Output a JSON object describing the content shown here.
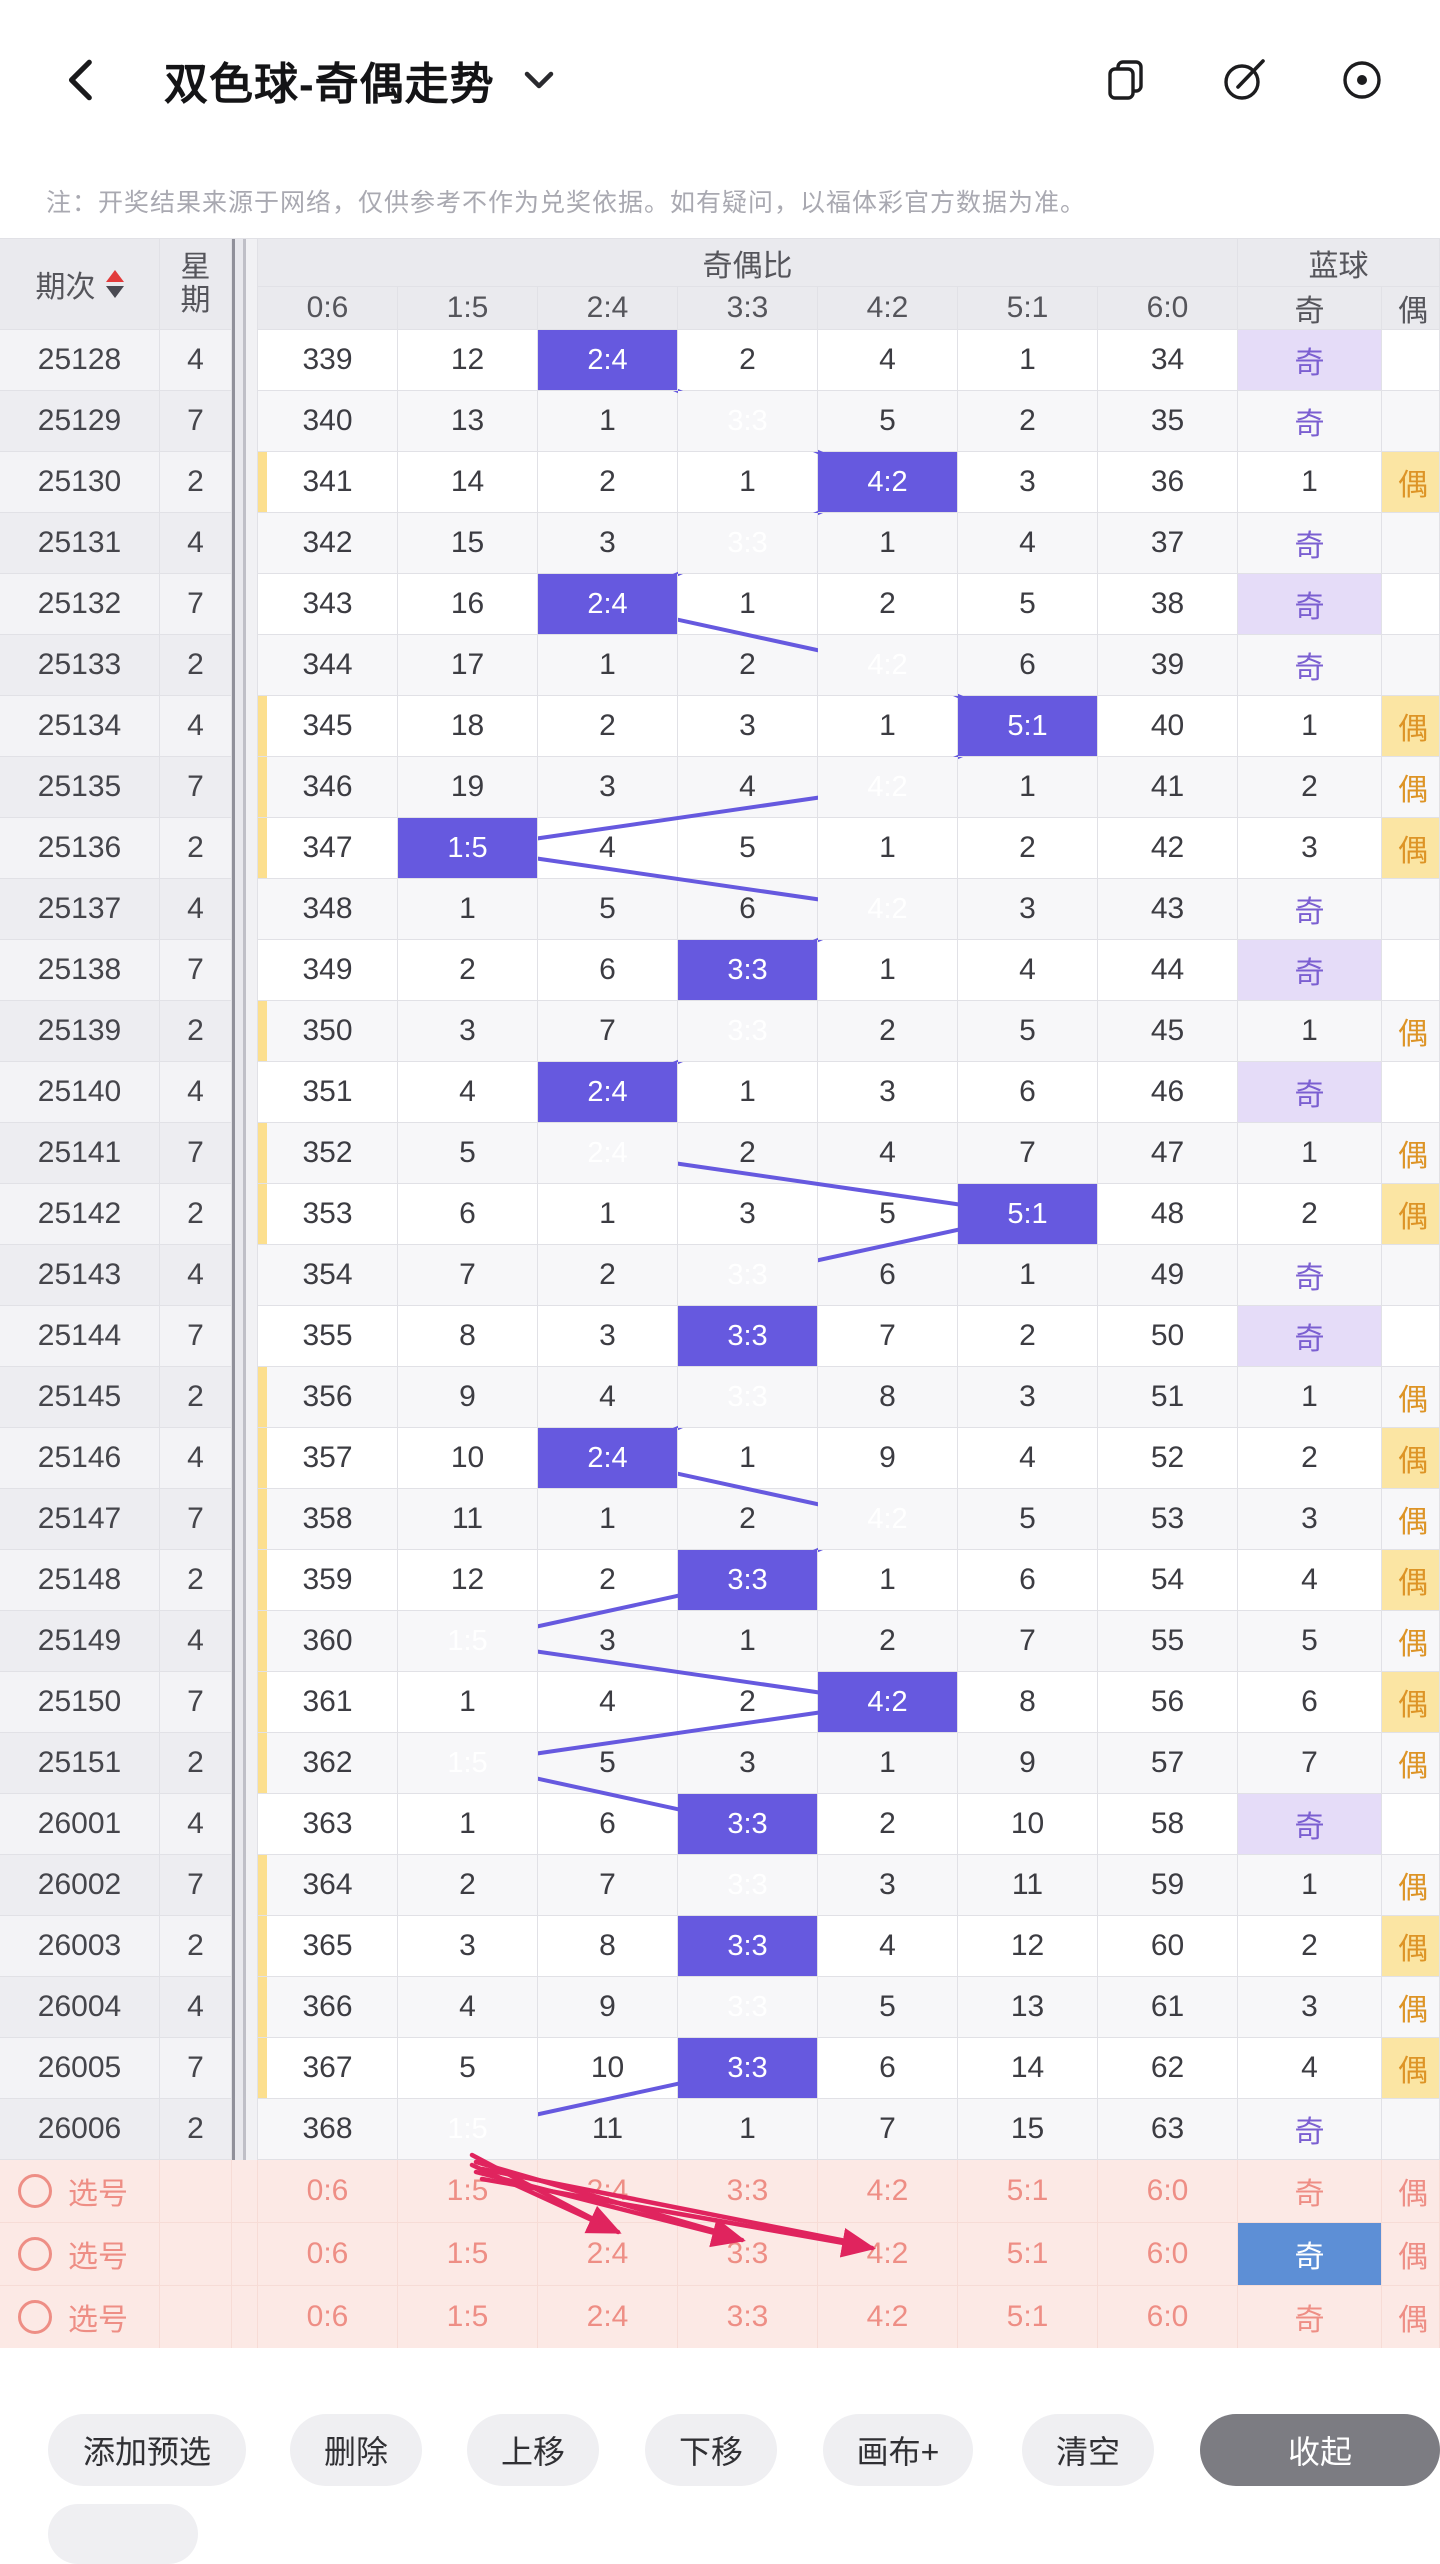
{
  "header": {
    "back_icon": "chevron-left",
    "title": "双色球-奇偶走势",
    "dropdown_icon": "chevron-down",
    "action_icons": [
      "window-switch-icon",
      "compose-icon",
      "record-icon"
    ]
  },
  "notice": "注：开奖结果来源于网络，仅供参考不作为兑奖依据。如有疑问，以福体彩官方数据为准。",
  "table": {
    "col_period": "期次",
    "col_week": "星期",
    "group_ratio": "奇偶比",
    "group_blue": "蓝球",
    "ratio_labels": [
      "0:6",
      "1:5",
      "2:4",
      "3:3",
      "4:2",
      "5:1",
      "6:0"
    ],
    "blue_odd_label": "奇",
    "blue_even_label": "偶",
    "rows": [
      {
        "period": "25128",
        "week": "4",
        "cells": [
          "339",
          "12",
          "2:4",
          "2",
          "4",
          "1",
          "34"
        ],
        "hit": 2,
        "blue": "奇",
        "blue_odd": true
      },
      {
        "period": "25129",
        "week": "7",
        "cells": [
          "340",
          "13",
          "1",
          "3:3",
          "5",
          "2",
          "35"
        ],
        "hit": 3,
        "blue": "奇",
        "blue_odd": true
      },
      {
        "period": "25130",
        "week": "2",
        "cells": [
          "341",
          "14",
          "2",
          "1",
          "4:2",
          "3",
          "36"
        ],
        "hit": 4,
        "blue": "1",
        "blue_odd": false
      },
      {
        "period": "25131",
        "week": "4",
        "cells": [
          "342",
          "15",
          "3",
          "3:3",
          "1",
          "4",
          "37"
        ],
        "hit": 3,
        "blue": "奇",
        "blue_odd": true
      },
      {
        "period": "25132",
        "week": "7",
        "cells": [
          "343",
          "16",
          "2:4",
          "1",
          "2",
          "5",
          "38"
        ],
        "hit": 2,
        "blue": "奇",
        "blue_odd": true
      },
      {
        "period": "25133",
        "week": "2",
        "cells": [
          "344",
          "17",
          "1",
          "2",
          "4:2",
          "6",
          "39"
        ],
        "hit": 4,
        "blue": "奇",
        "blue_odd": true
      },
      {
        "period": "25134",
        "week": "4",
        "cells": [
          "345",
          "18",
          "2",
          "3",
          "1",
          "5:1",
          "40"
        ],
        "hit": 5,
        "blue": "1",
        "blue_odd": false
      },
      {
        "period": "25135",
        "week": "7",
        "cells": [
          "346",
          "19",
          "3",
          "4",
          "4:2",
          "1",
          "41"
        ],
        "hit": 4,
        "blue": "2",
        "blue_odd": false
      },
      {
        "period": "25136",
        "week": "2",
        "cells": [
          "347",
          "1:5",
          "4",
          "5",
          "1",
          "2",
          "42"
        ],
        "hit": 1,
        "blue": "3",
        "blue_odd": false
      },
      {
        "period": "25137",
        "week": "4",
        "cells": [
          "348",
          "1",
          "5",
          "6",
          "4:2",
          "3",
          "43"
        ],
        "hit": 4,
        "blue": "奇",
        "blue_odd": true
      },
      {
        "period": "25138",
        "week": "7",
        "cells": [
          "349",
          "2",
          "6",
          "3:3",
          "1",
          "4",
          "44"
        ],
        "hit": 3,
        "blue": "奇",
        "blue_odd": true
      },
      {
        "period": "25139",
        "week": "2",
        "cells": [
          "350",
          "3",
          "7",
          "3:3",
          "2",
          "5",
          "45"
        ],
        "hit": 3,
        "blue": "1",
        "blue_odd": false
      },
      {
        "period": "25140",
        "week": "4",
        "cells": [
          "351",
          "4",
          "2:4",
          "1",
          "3",
          "6",
          "46"
        ],
        "hit": 2,
        "blue": "奇",
        "blue_odd": true
      },
      {
        "period": "25141",
        "week": "7",
        "cells": [
          "352",
          "5",
          "2:4",
          "2",
          "4",
          "7",
          "47"
        ],
        "hit": 2,
        "blue": "1",
        "blue_odd": false
      },
      {
        "period": "25142",
        "week": "2",
        "cells": [
          "353",
          "6",
          "1",
          "3",
          "5",
          "5:1",
          "48"
        ],
        "hit": 5,
        "blue": "2",
        "blue_odd": false
      },
      {
        "period": "25143",
        "week": "4",
        "cells": [
          "354",
          "7",
          "2",
          "3:3",
          "6",
          "1",
          "49"
        ],
        "hit": 3,
        "blue": "奇",
        "blue_odd": true
      },
      {
        "period": "25144",
        "week": "7",
        "cells": [
          "355",
          "8",
          "3",
          "3:3",
          "7",
          "2",
          "50"
        ],
        "hit": 3,
        "blue": "奇",
        "blue_odd": true
      },
      {
        "period": "25145",
        "week": "2",
        "cells": [
          "356",
          "9",
          "4",
          "3:3",
          "8",
          "3",
          "51"
        ],
        "hit": 3,
        "blue": "1",
        "blue_odd": false
      },
      {
        "period": "25146",
        "week": "4",
        "cells": [
          "357",
          "10",
          "2:4",
          "1",
          "9",
          "4",
          "52"
        ],
        "hit": 2,
        "blue": "2",
        "blue_odd": false
      },
      {
        "period": "25147",
        "week": "7",
        "cells": [
          "358",
          "11",
          "1",
          "2",
          "4:2",
          "5",
          "53"
        ],
        "hit": 4,
        "blue": "3",
        "blue_odd": false
      },
      {
        "period": "25148",
        "week": "2",
        "cells": [
          "359",
          "12",
          "2",
          "3:3",
          "1",
          "6",
          "54"
        ],
        "hit": 3,
        "blue": "4",
        "blue_odd": false
      },
      {
        "period": "25149",
        "week": "4",
        "cells": [
          "360",
          "1:5",
          "3",
          "1",
          "2",
          "7",
          "55"
        ],
        "hit": 1,
        "blue": "5",
        "blue_odd": false
      },
      {
        "period": "25150",
        "week": "7",
        "cells": [
          "361",
          "1",
          "4",
          "2",
          "4:2",
          "8",
          "56"
        ],
        "hit": 4,
        "blue": "6",
        "blue_odd": false
      },
      {
        "period": "25151",
        "week": "2",
        "cells": [
          "362",
          "1:5",
          "5",
          "3",
          "1",
          "9",
          "57"
        ],
        "hit": 1,
        "blue": "7",
        "blue_odd": false
      },
      {
        "period": "26001",
        "week": "4",
        "cells": [
          "363",
          "1",
          "6",
          "3:3",
          "2",
          "10",
          "58"
        ],
        "hit": 3,
        "blue": "奇",
        "blue_odd": true
      },
      {
        "period": "26002",
        "week": "7",
        "cells": [
          "364",
          "2",
          "7",
          "3:3",
          "3",
          "11",
          "59"
        ],
        "hit": 3,
        "blue": "1",
        "blue_odd": false
      },
      {
        "period": "26003",
        "week": "2",
        "cells": [
          "365",
          "3",
          "8",
          "3:3",
          "4",
          "12",
          "60"
        ],
        "hit": 3,
        "blue": "2",
        "blue_odd": false
      },
      {
        "period": "26004",
        "week": "4",
        "cells": [
          "366",
          "4",
          "9",
          "3:3",
          "5",
          "13",
          "61"
        ],
        "hit": 3,
        "blue": "3",
        "blue_odd": false
      },
      {
        "period": "26005",
        "week": "7",
        "cells": [
          "367",
          "5",
          "10",
          "3:3",
          "6",
          "14",
          "62"
        ],
        "hit": 3,
        "blue": "4",
        "blue_odd": false
      },
      {
        "period": "26006",
        "week": "2",
        "cells": [
          "368",
          "1:5",
          "11",
          "1",
          "7",
          "15",
          "63"
        ],
        "hit": 1,
        "blue": "奇",
        "blue_odd": true
      }
    ]
  },
  "selection": {
    "rows": [
      {
        "label": "选号",
        "cells": [
          "0:6",
          "1:5",
          "2:4",
          "3:3",
          "4:2",
          "5:1",
          "6:0"
        ],
        "blue": "奇",
        "blue_selected": false
      },
      {
        "label": "选号",
        "cells": [
          "0:6",
          "1:5",
          "2:4",
          "3:3",
          "4:2",
          "5:1",
          "6:0"
        ],
        "blue": "奇",
        "blue_selected": true
      },
      {
        "label": "选号",
        "cells": [
          "0:6",
          "1:5",
          "2:4",
          "3:3",
          "4:2",
          "5:1",
          "6:0"
        ],
        "blue": "奇",
        "blue_selected": false
      }
    ]
  },
  "toolbar": {
    "buttons": [
      "添加预选",
      "删除",
      "上移",
      "下移",
      "画布+",
      "清空",
      "收起"
    ]
  },
  "colors": {
    "purple": "#6659DF",
    "purpleLight": "#E5DCF8",
    "purpleText": "#7B5FD1",
    "yellow": "#FBE5A3",
    "yellowText": "#DD9426",
    "tickYellow": "#FCDF8E",
    "pinkBg": "#FCE9E5",
    "pinkBorder": "#F7DCD6",
    "coral": "#EE8E85",
    "blueSelected": "#5D8FD6",
    "arrow": "#E0245E",
    "headerBg": "#EAEAEE",
    "stripeAlt": "#F7F7F9",
    "leftCol": "#F3F3F6",
    "leftColAlt": "#EDEDF1",
    "border": "#E1E1E6",
    "toolbarBtn": "#EFEFF2",
    "toolbarDark": "#7C7C82"
  }
}
